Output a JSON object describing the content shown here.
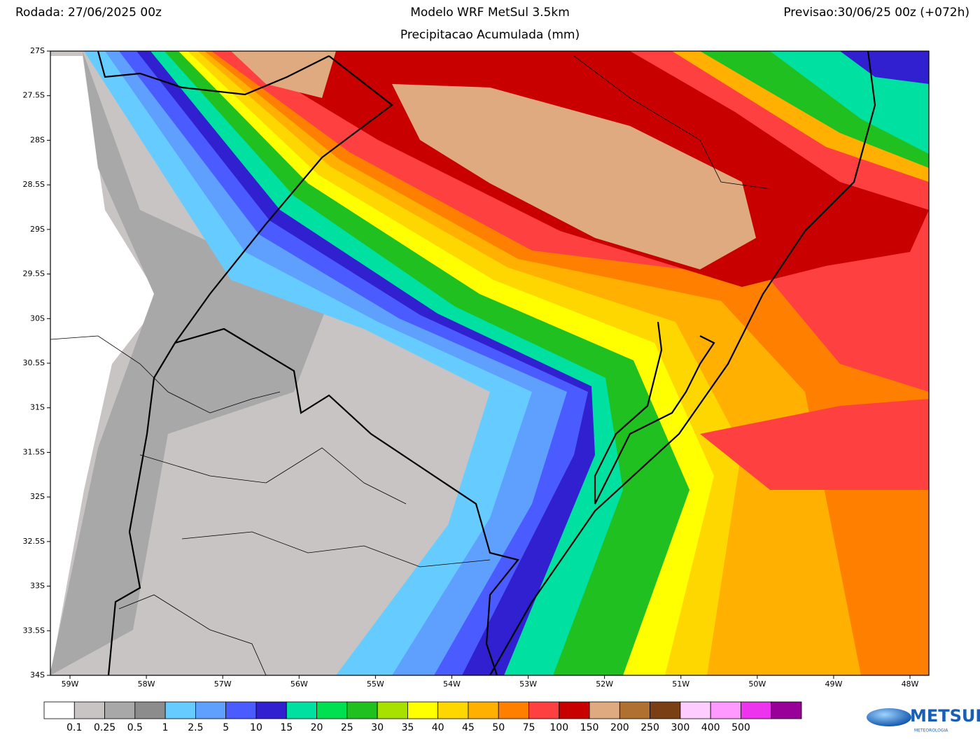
{
  "header": {
    "run": "Rodada: 27/06/2025 00z",
    "title": "Modelo WRF MetSul 3.5km",
    "subtitle": "Precipitacao Acumulada (mm)",
    "forecast": "Previsao:30/06/25 00z (+072h)"
  },
  "map": {
    "lat_labels": [
      "27S",
      "27.5S",
      "28S",
      "28.5S",
      "29S",
      "29.5S",
      "30S",
      "30.5S",
      "31S",
      "31.5S",
      "32S",
      "32.5S",
      "33S",
      "33.5S",
      "34S"
    ],
    "lon_labels": [
      "59W",
      "58W",
      "57W",
      "56W",
      "55W",
      "54W",
      "53W",
      "52W",
      "51W",
      "50W",
      "49W",
      "48W"
    ]
  },
  "legend": {
    "colors": [
      "#ffffff",
      "#c8c4c4",
      "#a8a8a8",
      "#8c8c8c",
      "#66ccff",
      "#5fa0ff",
      "#4a5cff",
      "#3020d0",
      "#00e0a0",
      "#00e050",
      "#20c020",
      "#a8e000",
      "#ffff00",
      "#ffd700",
      "#ffb000",
      "#ff8000",
      "#ff4040",
      "#c80000",
      "#e0aa80",
      "#b07030",
      "#7a3f15",
      "#ffccff",
      "#ff99ff",
      "#ee33ee",
      "#990099"
    ],
    "labels": [
      "0.1",
      "0.25",
      "0.5",
      "1",
      "2.5",
      "5",
      "10",
      "15",
      "20",
      "25",
      "30",
      "35",
      "40",
      "45",
      "50",
      "75",
      "100",
      "150",
      "200",
      "250",
      "300",
      "400",
      "500"
    ]
  },
  "logo": {
    "name": "METSUL",
    "tagline": "METEOROLOGIA"
  }
}
